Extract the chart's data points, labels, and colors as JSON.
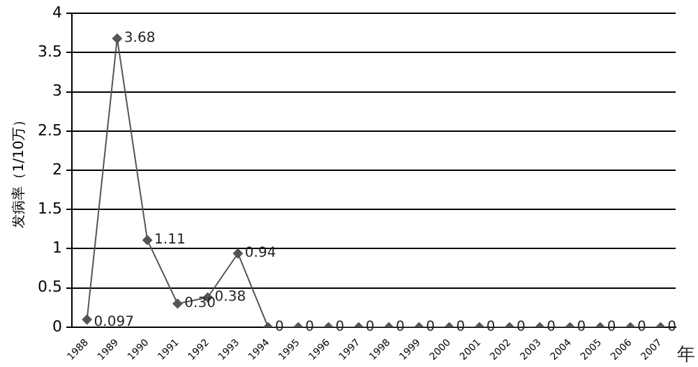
{
  "chart_data": {
    "type": "line",
    "ylabel": "发病率（1/10万）",
    "xlabel": "年",
    "categories": [
      "1988",
      "1989",
      "1990",
      "1991",
      "1992",
      "1993",
      "1994",
      "1995",
      "1996",
      "1997",
      "1998",
      "1999",
      "2000",
      "2001",
      "2002",
      "2003",
      "2004",
      "2005",
      "2006",
      "2007"
    ],
    "series": [
      {
        "color": "#555555",
        "values": [
          0.097,
          3.68,
          1.11,
          0.3,
          0.38,
          0.94,
          0,
          0,
          0,
          0,
          0,
          0,
          0,
          0,
          0,
          0,
          0,
          0,
          0,
          0
        ],
        "value_labels": [
          "0.097",
          "3.68",
          "1.11",
          "0.30",
          "0.38",
          "0.94",
          "0",
          "0",
          "0",
          "0",
          "0",
          "0",
          "0",
          "0",
          "0",
          "0",
          "0",
          "0",
          "0",
          "0"
        ]
      }
    ],
    "ylim": [
      0,
      4
    ],
    "yticks": [
      0,
      0.5,
      1,
      1.5,
      2,
      2.5,
      3,
      3.5,
      4
    ],
    "grid": "y",
    "marker": "diamond",
    "line_style": "solid",
    "legend": false
  }
}
